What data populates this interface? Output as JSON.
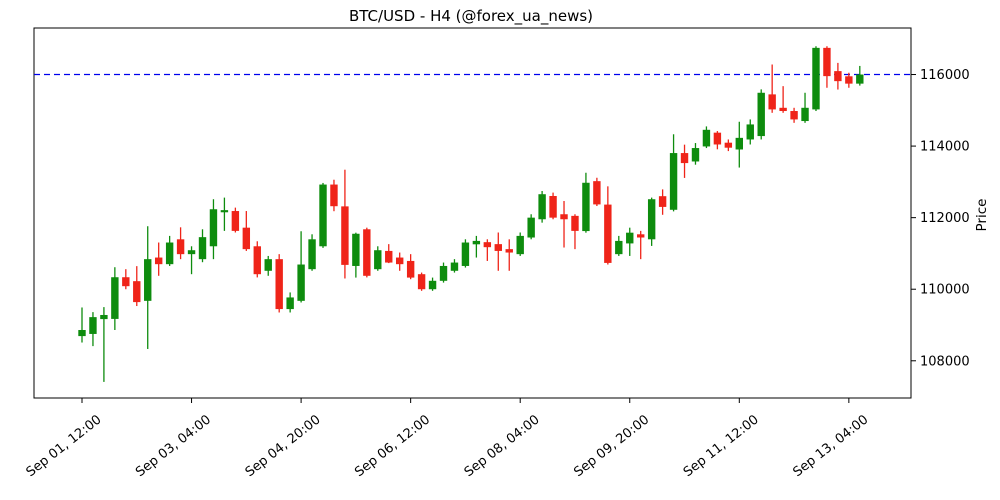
{
  "figure": {
    "title": "BTC/USD - H4 (@forex_ua_news)"
  },
  "chart_data": {
    "type": "candlestick",
    "title": "BTC/USD - H4 (@forex_ua_news)",
    "symbol": "BTC/USD",
    "timeframe": "H4",
    "title_source": "@forex_ua_news",
    "ylabel": "Price",
    "xlabel": "",
    "grid": false,
    "legend": "none",
    "ylim": [
      106960,
      117300
    ],
    "y_ticks": [
      108000,
      110000,
      112000,
      114000,
      116000
    ],
    "x_ticks": [
      {
        "index": 0,
        "label": "Sep 01, 12:00"
      },
      {
        "index": 10,
        "label": "Sep 03, 04:00"
      },
      {
        "index": 20,
        "label": "Sep 04, 20:00"
      },
      {
        "index": 30,
        "label": "Sep 06, 12:00"
      },
      {
        "index": 40,
        "label": "Sep 08, 04:00"
      },
      {
        "index": 50,
        "label": "Sep 09, 20:00"
      },
      {
        "index": 60,
        "label": "Sep 11, 12:00"
      },
      {
        "index": 70,
        "label": "Sep 13, 04:00"
      }
    ],
    "hline": {
      "price": 116000,
      "color": "#0000ee",
      "style": "dashed"
    },
    "colors": {
      "up": "#0e8c0e",
      "down": "#ef2419",
      "frame": "#000000"
    },
    "candles": [
      {
        "time": "Sep 01, 12:00",
        "open": 108690,
        "high": 109490,
        "low": 108510,
        "close": 108860
      },
      {
        "time": "Sep 01, 16:00",
        "open": 108750,
        "high": 109360,
        "low": 108410,
        "close": 109220
      },
      {
        "time": "Sep 01, 20:00",
        "open": 109165,
        "high": 109500,
        "low": 107410,
        "close": 109280
      },
      {
        "time": "Sep 02, 00:00",
        "open": 109170,
        "high": 110615,
        "low": 108860,
        "close": 110335
      },
      {
        "time": "Sep 02, 04:00",
        "open": 110335,
        "high": 110560,
        "low": 110000,
        "close": 110085
      },
      {
        "time": "Sep 02, 08:00",
        "open": 110225,
        "high": 110645,
        "low": 109530,
        "close": 109640
      },
      {
        "time": "Sep 02, 12:00",
        "open": 109675,
        "high": 111760,
        "low": 108330,
        "close": 110840
      },
      {
        "time": "Sep 02, 16:00",
        "open": 110885,
        "high": 111305,
        "low": 110375,
        "close": 110700
      },
      {
        "time": "Sep 02, 20:00",
        "open": 110700,
        "high": 111490,
        "low": 110650,
        "close": 111305
      },
      {
        "time": "Sep 03, 00:00",
        "open": 111395,
        "high": 111730,
        "low": 110840,
        "close": 110980
      },
      {
        "time": "Sep 03, 04:00",
        "open": 110980,
        "high": 111200,
        "low": 110420,
        "close": 111090
      },
      {
        "time": "Sep 03, 08:00",
        "open": 110840,
        "high": 111675,
        "low": 110755,
        "close": 111455
      },
      {
        "time": "Sep 03, 12:00",
        "open": 111200,
        "high": 112515,
        "low": 110840,
        "close": 112235
      },
      {
        "time": "Sep 03, 16:00",
        "open": 112150,
        "high": 112560,
        "low": 111630,
        "close": 112210
      },
      {
        "time": "Sep 03, 20:00",
        "open": 112185,
        "high": 112280,
        "low": 111585,
        "close": 111630
      },
      {
        "time": "Sep 04, 00:00",
        "open": 111720,
        "high": 112185,
        "low": 111070,
        "close": 111120
      },
      {
        "time": "Sep 04, 04:00",
        "open": 111200,
        "high": 111340,
        "low": 110330,
        "close": 110420
      },
      {
        "time": "Sep 04, 08:00",
        "open": 110515,
        "high": 110930,
        "low": 110375,
        "close": 110840
      },
      {
        "time": "Sep 04, 12:00",
        "open": 110840,
        "high": 110980,
        "low": 109350,
        "close": 109445
      },
      {
        "time": "Sep 04, 16:00",
        "open": 109445,
        "high": 109910,
        "low": 109350,
        "close": 109770
      },
      {
        "time": "Sep 04, 20:00",
        "open": 109675,
        "high": 111620,
        "low": 109630,
        "close": 110690
      },
      {
        "time": "Sep 05, 00:00",
        "open": 110560,
        "high": 111535,
        "low": 110515,
        "close": 111395
      },
      {
        "time": "Sep 05, 04:00",
        "open": 111200,
        "high": 112970,
        "low": 111155,
        "close": 112925
      },
      {
        "time": "Sep 05, 08:00",
        "open": 112925,
        "high": 113060,
        "low": 112180,
        "close": 112320
      },
      {
        "time": "Sep 05, 12:00",
        "open": 112315,
        "high": 113340,
        "low": 110300,
        "close": 110680
      },
      {
        "time": "Sep 05, 16:00",
        "open": 110650,
        "high": 111580,
        "low": 110325,
        "close": 111550
      },
      {
        "time": "Sep 05, 20:00",
        "open": 111675,
        "high": 111720,
        "low": 110330,
        "close": 110375
      },
      {
        "time": "Sep 06, 00:00",
        "open": 110560,
        "high": 111200,
        "low": 110515,
        "close": 111090
      },
      {
        "time": "Sep 06, 04:00",
        "open": 111070,
        "high": 111260,
        "low": 110730,
        "close": 110745
      },
      {
        "time": "Sep 06, 08:00",
        "open": 110885,
        "high": 111025,
        "low": 110515,
        "close": 110700
      },
      {
        "time": "Sep 06, 12:00",
        "open": 110790,
        "high": 110980,
        "low": 110280,
        "close": 110325
      },
      {
        "time": "Sep 06, 16:00",
        "open": 110420,
        "high": 110465,
        "low": 109955,
        "close": 110000
      },
      {
        "time": "Sep 06, 20:00",
        "open": 110000,
        "high": 110325,
        "low": 109955,
        "close": 110235
      },
      {
        "time": "Sep 07, 00:00",
        "open": 110235,
        "high": 110745,
        "low": 110185,
        "close": 110650
      },
      {
        "time": "Sep 07, 04:00",
        "open": 110515,
        "high": 110840,
        "low": 110465,
        "close": 110745
      },
      {
        "time": "Sep 07, 08:00",
        "open": 110650,
        "high": 111395,
        "low": 110605,
        "close": 111305
      },
      {
        "time": "Sep 07, 12:00",
        "open": 111255,
        "high": 111490,
        "low": 110885,
        "close": 111350
      },
      {
        "time": "Sep 07, 16:00",
        "open": 111315,
        "high": 111395,
        "low": 110790,
        "close": 111175
      },
      {
        "time": "Sep 07, 20:00",
        "open": 111260,
        "high": 111585,
        "low": 110515,
        "close": 111070
      },
      {
        "time": "Sep 08, 00:00",
        "open": 111120,
        "high": 111395,
        "low": 110515,
        "close": 111025
      },
      {
        "time": "Sep 08, 04:00",
        "open": 110980,
        "high": 111585,
        "low": 110930,
        "close": 111490
      },
      {
        "time": "Sep 08, 08:00",
        "open": 111445,
        "high": 112095,
        "low": 111395,
        "close": 112000
      },
      {
        "time": "Sep 08, 12:00",
        "open": 111955,
        "high": 112745,
        "low": 111860,
        "close": 112655
      },
      {
        "time": "Sep 08, 16:00",
        "open": 112605,
        "high": 112700,
        "low": 111955,
        "close": 112000
      },
      {
        "time": "Sep 08, 20:00",
        "open": 112095,
        "high": 112465,
        "low": 111165,
        "close": 111955
      },
      {
        "time": "Sep 09, 00:00",
        "open": 112050,
        "high": 112095,
        "low": 111120,
        "close": 111630
      },
      {
        "time": "Sep 09, 04:00",
        "open": 111625,
        "high": 113255,
        "low": 111580,
        "close": 112975
      },
      {
        "time": "Sep 09, 08:00",
        "open": 113020,
        "high": 113115,
        "low": 112325,
        "close": 112370
      },
      {
        "time": "Sep 09, 12:00",
        "open": 112365,
        "high": 112875,
        "low": 110690,
        "close": 110735
      },
      {
        "time": "Sep 09, 16:00",
        "open": 110980,
        "high": 111490,
        "low": 110930,
        "close": 111350
      },
      {
        "time": "Sep 09, 20:00",
        "open": 111280,
        "high": 111720,
        "low": 110930,
        "close": 111580
      },
      {
        "time": "Sep 10, 00:00",
        "open": 111535,
        "high": 111630,
        "low": 110840,
        "close": 111445
      },
      {
        "time": "Sep 10, 04:00",
        "open": 111395,
        "high": 112560,
        "low": 111210,
        "close": 112515
      },
      {
        "time": "Sep 10, 08:00",
        "open": 112600,
        "high": 112790,
        "low": 112080,
        "close": 112300
      },
      {
        "time": "Sep 10, 12:00",
        "open": 112220,
        "high": 114330,
        "low": 112175,
        "close": 113805
      },
      {
        "time": "Sep 10, 16:00",
        "open": 113805,
        "high": 114040,
        "low": 113110,
        "close": 113525
      },
      {
        "time": "Sep 10, 20:00",
        "open": 113570,
        "high": 114085,
        "low": 113480,
        "close": 113945
      },
      {
        "time": "Sep 11, 00:00",
        "open": 113990,
        "high": 114550,
        "low": 113945,
        "close": 114455
      },
      {
        "time": "Sep 11, 04:00",
        "open": 114375,
        "high": 114420,
        "low": 113910,
        "close": 114045
      },
      {
        "time": "Sep 11, 08:00",
        "open": 114095,
        "high": 114185,
        "low": 113860,
        "close": 113955
      },
      {
        "time": "Sep 11, 12:00",
        "open": 113905,
        "high": 114680,
        "low": 113400,
        "close": 114230
      },
      {
        "time": "Sep 11, 16:00",
        "open": 114185,
        "high": 114745,
        "low": 114045,
        "close": 114605
      },
      {
        "time": "Sep 11, 20:00",
        "open": 114280,
        "high": 115585,
        "low": 114185,
        "close": 115490
      },
      {
        "time": "Sep 12, 00:00",
        "open": 115445,
        "high": 116280,
        "low": 114930,
        "close": 115025
      },
      {
        "time": "Sep 12, 04:00",
        "open": 115070,
        "high": 115675,
        "low": 114930,
        "close": 114980
      },
      {
        "time": "Sep 12, 08:00",
        "open": 114980,
        "high": 115070,
        "low": 114650,
        "close": 114745
      },
      {
        "time": "Sep 12, 12:00",
        "open": 114700,
        "high": 115490,
        "low": 114650,
        "close": 115070
      },
      {
        "time": "Sep 12, 16:00",
        "open": 115025,
        "high": 116790,
        "low": 114980,
        "close": 116745
      },
      {
        "time": "Sep 12, 20:00",
        "open": 116745,
        "high": 116790,
        "low": 115630,
        "close": 115955
      },
      {
        "time": "Sep 13, 00:00",
        "open": 116095,
        "high": 116325,
        "low": 115580,
        "close": 115815
      },
      {
        "time": "Sep 13, 04:00",
        "open": 115950,
        "high": 116050,
        "low": 115630,
        "close": 115745
      },
      {
        "time": "Sep 13, 08:00",
        "open": 115745,
        "high": 116240,
        "low": 115690,
        "close": 116000
      }
    ]
  }
}
